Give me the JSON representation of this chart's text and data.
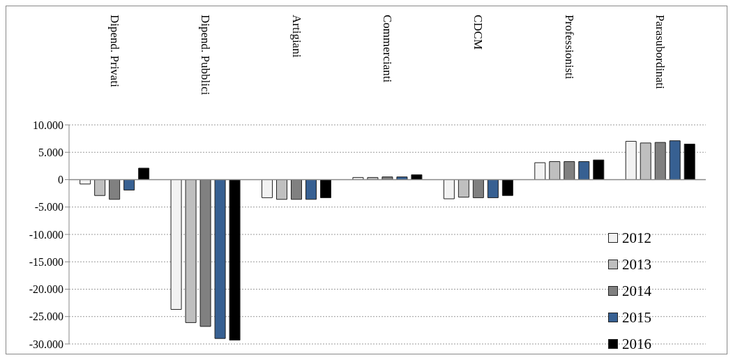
{
  "chart_data": {
    "type": "bar",
    "categories": [
      "Dipend. Privati",
      "Dipend. Pubblici",
      "Artigiani",
      "Commercianti",
      "CDCM",
      "Professionisti",
      "Parasubordinati"
    ],
    "series": [
      {
        "name": "2012",
        "color": "#f2f2f2",
        "values": [
          -800,
          -23700,
          -3300,
          400,
          -3500,
          3100,
          7000
        ]
      },
      {
        "name": "2013",
        "color": "#bfbfbf",
        "values": [
          -2900,
          -26100,
          -3600,
          400,
          -3200,
          3300,
          6700
        ]
      },
      {
        "name": "2014",
        "color": "#808080",
        "values": [
          -3600,
          -26800,
          -3600,
          500,
          -3300,
          3300,
          6800
        ]
      },
      {
        "name": "2015",
        "color": "#376092",
        "values": [
          -1900,
          -29000,
          -3600,
          500,
          -3300,
          3300,
          7100
        ]
      },
      {
        "name": "2016",
        "color": "#000000",
        "values": [
          2100,
          -29300,
          -3300,
          900,
          -2900,
          3600,
          6500
        ]
      }
    ],
    "ylim": [
      -30000,
      10000
    ],
    "yticks": [
      {
        "value": -30000,
        "label": "-30.000"
      },
      {
        "value": -25000,
        "label": "-25.000"
      },
      {
        "value": -20000,
        "label": "-20.000"
      },
      {
        "value": -15000,
        "label": "-15.000"
      },
      {
        "value": -10000,
        "label": "-10.000"
      },
      {
        "value": -5000,
        "label": "-5.000"
      },
      {
        "value": 0,
        "label": "0"
      },
      {
        "value": 5000,
        "label": "5.000"
      },
      {
        "value": 10000,
        "label": "10.000"
      }
    ],
    "grid": "y",
    "legend": "bottom right"
  }
}
